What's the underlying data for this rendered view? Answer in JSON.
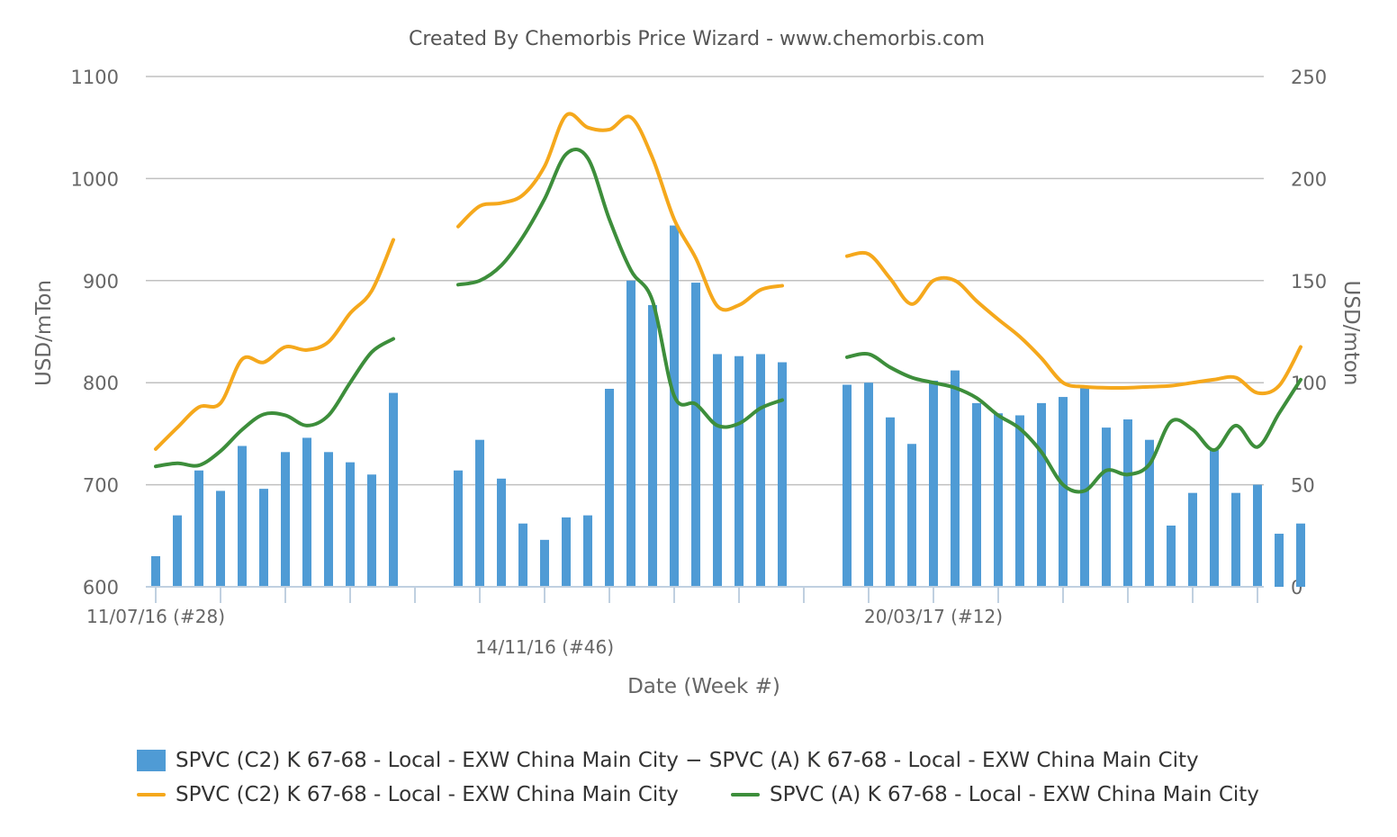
{
  "chart_data": {
    "type": "bar",
    "title": "Created By Chemorbis Price Wizard - www.chemorbis.com",
    "xlabel": "Date (Week #)",
    "ylabel_left": "USD/mTon",
    "ylabel_right": "USD/mton",
    "ylim_left": [
      600,
      1100
    ],
    "ylim_right": [
      0,
      250
    ],
    "yticks_left": [
      "600",
      "700",
      "800",
      "900",
      "1000",
      "1100"
    ],
    "yticks_right": [
      "0",
      "50",
      "100",
      "150",
      "200",
      "250"
    ],
    "xtick_labels": [
      "11/07/16 (#28)",
      "14/11/16 (#46)",
      "20/03/17 (#12)"
    ],
    "grid": true,
    "legend_position": "bottom",
    "series": [
      {
        "name": "SPVC (C2) K 67-68 - Local - EXW China Main City − SPVC (A) K 67-68 - Local - EXW China Main City",
        "type": "bar",
        "axis": "right",
        "color": "#4f9bd5",
        "values": [
          15,
          35,
          57,
          47,
          69,
          48,
          66,
          73,
          66,
          61,
          55,
          95,
          null,
          null,
          57,
          72,
          53,
          31,
          23,
          34,
          35,
          97,
          150,
          138,
          177,
          149,
          114,
          113,
          114,
          110,
          null,
          null,
          99,
          100,
          83,
          70,
          101,
          106,
          90,
          85,
          84,
          90,
          93,
          98,
          78,
          82,
          72,
          30,
          46,
          67,
          46,
          50,
          26,
          31
        ]
      },
      {
        "name": "SPVC (C2) K 67-68 - Local - EXW China Main City",
        "type": "line",
        "axis": "left",
        "color": "#f5a81c",
        "values": [
          735,
          756,
          776,
          780,
          823,
          820,
          835,
          832,
          840,
          868,
          890,
          940,
          null,
          null,
          953,
          973,
          976,
          984,
          1012,
          1062,
          1050,
          1048,
          1060,
          1020,
          960,
          922,
          875,
          876,
          891,
          895,
          null,
          null,
          924,
          926,
          902,
          877,
          900,
          900,
          880,
          862,
          845,
          824,
          800,
          796,
          795,
          795,
          796,
          797,
          800,
          803,
          805,
          790,
          797,
          835
        ]
      },
      {
        "name": "SPVC (A) K 67-68 - Local - EXW China Main City",
        "type": "line",
        "axis": "left",
        "color": "#3d8e3b",
        "values": [
          718,
          721,
          719,
          733,
          754,
          769,
          768,
          758,
          768,
          800,
          830,
          843,
          null,
          null,
          896,
          900,
          915,
          943,
          980,
          1024,
          1020,
          960,
          910,
          880,
          787,
          779,
          758,
          760,
          775,
          783,
          null,
          null,
          825,
          828,
          815,
          805,
          800,
          795,
          785,
          768,
          755,
          732,
          700,
          694,
          714,
          710,
          720,
          762,
          754,
          734,
          758,
          737,
          770,
          803
        ]
      }
    ]
  }
}
